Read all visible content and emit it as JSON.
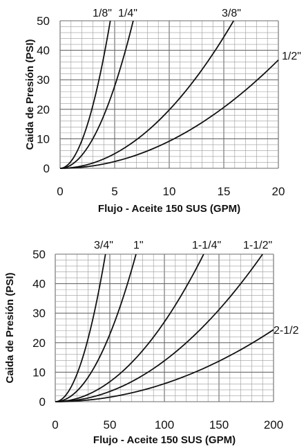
{
  "chart_data": [
    {
      "type": "line",
      "xlabel": "Flujo - Aceite 150 SUS (GPM)",
      "ylabel": "Caida de Presión (PSI)",
      "xlim": [
        0,
        20
      ],
      "ylim": [
        0,
        50
      ],
      "x_ticks": [
        "0",
        "5",
        "10",
        "15",
        "20"
      ],
      "y_ticks": [
        "0",
        "10",
        "20",
        "30",
        "40",
        "50"
      ],
      "grid": true,
      "series": [
        {
          "name": "1/8\"",
          "x": [
            0,
            1,
            2,
            3,
            4,
            4.6
          ],
          "y": [
            0,
            2.4,
            9.5,
            21.3,
            37.8,
            50
          ]
        },
        {
          "name": "1/4\"",
          "x": [
            0,
            1,
            2,
            3,
            4,
            5,
            6,
            6.7
          ],
          "y": [
            0,
            1.1,
            4.5,
            10,
            17.8,
            27.8,
            40,
            50
          ]
        },
        {
          "name": "3/8\"",
          "x": [
            0,
            2,
            4,
            6,
            8,
            10,
            12,
            14,
            15.9
          ],
          "y": [
            0,
            0.8,
            3.2,
            7.1,
            12.7,
            19.8,
            28.5,
            38.8,
            50
          ]
        },
        {
          "name": "1/2\"",
          "x": [
            0,
            4,
            8,
            12,
            16,
            20
          ],
          "y": [
            0,
            1.5,
            5.9,
            13.2,
            23.5,
            36.7
          ]
        }
      ]
    },
    {
      "type": "line",
      "xlabel": "Flujo - Aceite 150 SUS (GPM)",
      "ylabel": "Caida de Presión (PSI)",
      "xlim": [
        0,
        200
      ],
      "ylim": [
        0,
        50
      ],
      "x_ticks": [
        "0",
        "50",
        "100",
        "150",
        "200"
      ],
      "y_ticks": [
        "0",
        "10",
        "20",
        "30",
        "40",
        "50"
      ],
      "grid": true,
      "series": [
        {
          "name": "3/4\"",
          "x": [
            0,
            10,
            20,
            30,
            40,
            46
          ],
          "y": [
            0,
            2.4,
            9.5,
            21.3,
            37.8,
            50
          ]
        },
        {
          "name": "1\"",
          "x": [
            0,
            10,
            20,
            30,
            40,
            50,
            60,
            70,
            74
          ],
          "y": [
            0,
            0.9,
            3.7,
            8.2,
            14.6,
            22.8,
            32.9,
            44.7,
            50
          ]
        },
        {
          "name": "1-1/4\"",
          "x": [
            0,
            20,
            40,
            60,
            80,
            100,
            120,
            136
          ],
          "y": [
            0,
            1.1,
            4.3,
            9.7,
            17.3,
            27,
            38.9,
            50
          ]
        },
        {
          "name": "1-1/2\"",
          "x": [
            0,
            25,
            50,
            75,
            100,
            125,
            150,
            175,
            190
          ],
          "y": [
            0,
            0.9,
            3.5,
            7.8,
            13.9,
            21.6,
            31.2,
            42.4,
            50
          ]
        },
        {
          "name": "2-1/2",
          "x": [
            0,
            40,
            80,
            120,
            160,
            200
          ],
          "y": [
            0,
            1,
            3.9,
            8.8,
            15.6,
            24.4
          ]
        }
      ]
    }
  ]
}
